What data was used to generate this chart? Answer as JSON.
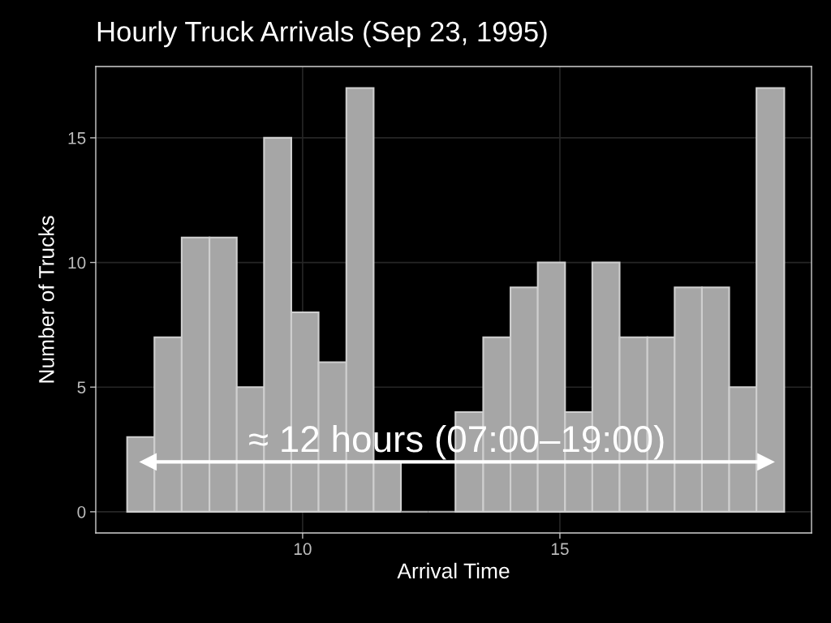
{
  "chart_data": {
    "type": "histogram",
    "title": "Hourly Truck Arrivals (Sep 23, 1995)",
    "xlabel": "Arrival Time",
    "ylabel": "Number of Trucks",
    "bins": [
      6.59,
      7.12,
      7.65,
      8.19,
      8.72,
      9.25,
      9.78,
      10.31,
      10.85,
      11.38,
      11.91,
      12.44,
      12.97,
      13.51,
      14.04,
      14.57,
      15.1,
      15.63,
      16.16,
      16.7,
      17.23,
      17.76,
      18.29,
      18.82,
      19.36
    ],
    "values": [
      3,
      7,
      11,
      11,
      5,
      15,
      8,
      6,
      17,
      2,
      0,
      0,
      4,
      7,
      9,
      10,
      4,
      10,
      7,
      7,
      9,
      9,
      5,
      17
    ],
    "color": "#a6a6a6",
    "xlim": [
      5.98,
      19.89
    ],
    "xticks": [
      10,
      15
    ],
    "ylim": [
      -0.85,
      17.86
    ],
    "yticks": [
      0,
      5,
      10,
      15
    ],
    "grid": true,
    "series": [
      {
        "type": "line",
        "x": [
          7,
          19
        ],
        "values": [
          2,
          2
        ],
        "color": "#ffffff",
        "marker": "triangle"
      }
    ],
    "annotations": [
      {
        "text": "≈ 12 hours (07:00–19:00)",
        "x": 13,
        "y": 2
      }
    ]
  }
}
